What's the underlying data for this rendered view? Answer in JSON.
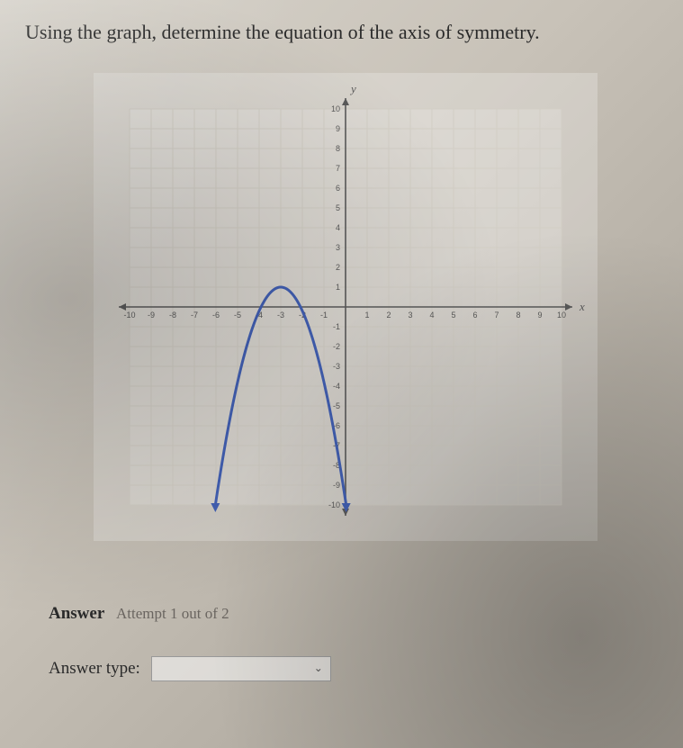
{
  "question_text": "Using the graph, determine the equation of the axis of symmetry.",
  "graph": {
    "type": "parabola-on-grid",
    "xlim": [
      -10,
      10
    ],
    "ylim": [
      -10,
      10
    ],
    "tick_step": 1,
    "x_axis_label": "x",
    "y_axis_label": "y",
    "x_ticks": [
      -10,
      -9,
      -8,
      -7,
      -6,
      -5,
      -4,
      -3,
      -2,
      -1,
      1,
      2,
      3,
      4,
      5,
      6,
      7,
      8,
      9,
      10
    ],
    "y_ticks": [
      -10,
      -9,
      -8,
      -7,
      -6,
      -5,
      -4,
      -3,
      -2,
      -1,
      1,
      2,
      3,
      4,
      5,
      6,
      7,
      8,
      9,
      10
    ],
    "grid_color": "#d5d0c7",
    "axis_color": "#555555",
    "tick_label_color": "#555555",
    "tick_fontsize": 9,
    "background_color": "rgba(255,255,255,0.18)",
    "curve": {
      "color": "#3b5bb5",
      "width": 3,
      "vertex": [
        -3,
        1
      ],
      "coefficient_a": -1.2,
      "arrow_ends": true
    }
  },
  "answer": {
    "heading": "Answer",
    "attempt_text": "Attempt 1 out of 2",
    "type_label": "Answer type:",
    "type_value": ""
  }
}
